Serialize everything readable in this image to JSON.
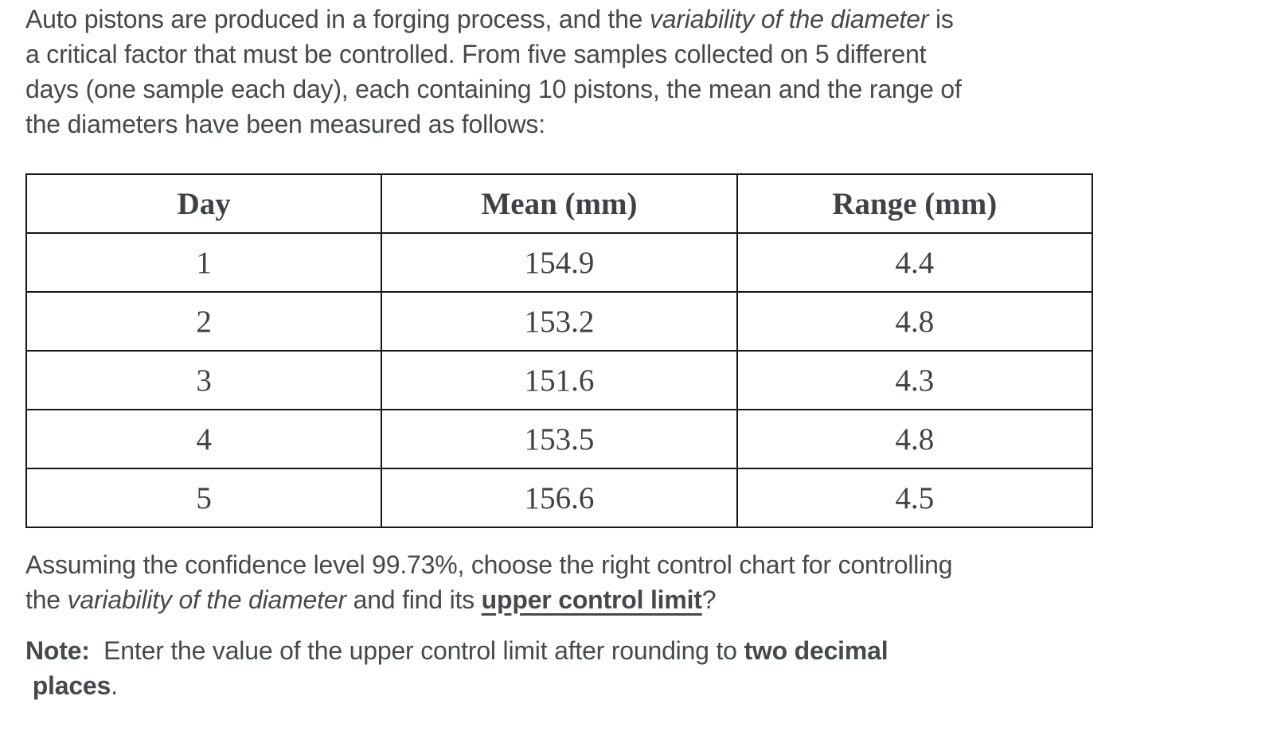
{
  "page": {
    "background": "#ffffff",
    "text_color": "#46494c",
    "table_text_color": "#3f4245",
    "table_border_color": "#161616"
  },
  "intro": {
    "l1a": "Auto pistons are produced in a forging process, and the ",
    "l1b_italic": "variability of the diameter",
    "l1c": " is",
    "l2": "a critical factor that must be controlled. From five samples collected on 5 different",
    "l3": "days (one sample each day), each containing 10 pistons, the mean and the range of",
    "l4": "the diameters have been measured as follows:"
  },
  "table": {
    "headers": [
      "Day",
      "Mean (mm)",
      "Range (mm)"
    ],
    "rows": [
      {
        "day": "1",
        "mean": "154.9",
        "range": "4.4"
      },
      {
        "day": "2",
        "mean": "153.2",
        "range": "4.8"
      },
      {
        "day": "3",
        "mean": "151.6",
        "range": "4.3"
      },
      {
        "day": "4",
        "mean": "153.5",
        "range": "4.8"
      },
      {
        "day": "5",
        "mean": "156.6",
        "range": "4.5"
      }
    ]
  },
  "question": {
    "l1": "Assuming the confidence level 99.73%, choose the right control chart for controlling",
    "l2a": "the ",
    "l2b_italic": "variability of the diameter",
    "l2c": " and find its ",
    "l2d_bold_underline": "upper control limit",
    "l2e": "?"
  },
  "note": {
    "label_bold": "Note:",
    "l1a": "  Enter the value of the upper control limit after rounding to ",
    "l1b_bold": "two decimal",
    "l2a": " ",
    "l2b_bold": "places",
    "l2c": "."
  }
}
